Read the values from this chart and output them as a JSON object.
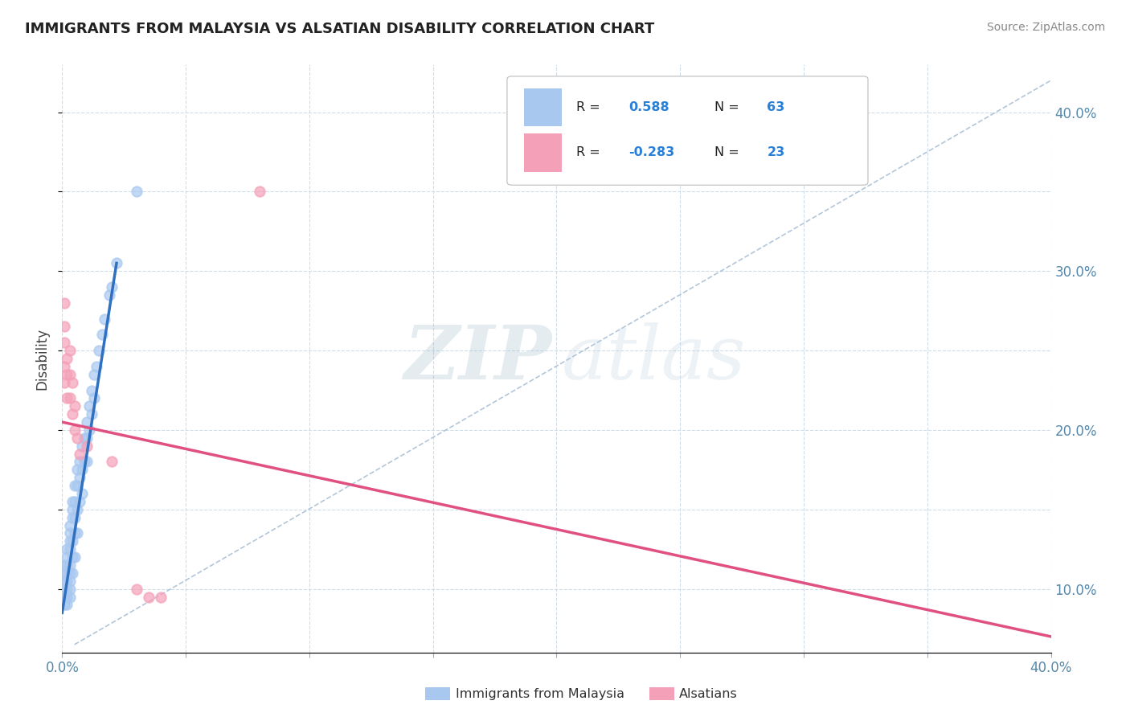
{
  "title": "IMMIGRANTS FROM MALAYSIA VS ALSATIAN DISABILITY CORRELATION CHART",
  "source": "Source: ZipAtlas.com",
  "ylabel": "Disability",
  "xlim": [
    0.0,
    0.4
  ],
  "ylim": [
    0.06,
    0.43
  ],
  "x_ticks": [
    0.0,
    0.05,
    0.1,
    0.15,
    0.2,
    0.25,
    0.3,
    0.35,
    0.4
  ],
  "x_tick_labels": [
    "0.0%",
    "",
    "",
    "",
    "",
    "",
    "",
    "",
    "40.0%"
  ],
  "y_ticks_right": [
    0.1,
    0.2,
    0.3,
    0.4
  ],
  "y_tick_labels_right": [
    "10.0%",
    "20.0%",
    "30.0%",
    "40.0%"
  ],
  "blue_color": "#A8C8F0",
  "pink_color": "#F4A0B8",
  "blue_line_color": "#3070C0",
  "pink_line_color": "#E05080",
  "ref_line_color": "#A0B8D0",
  "title_fontsize": 13,
  "blue_scatter_x": [
    0.001,
    0.001,
    0.001,
    0.001,
    0.001,
    0.001,
    0.002,
    0.002,
    0.002,
    0.002,
    0.002,
    0.002,
    0.002,
    0.002,
    0.003,
    0.003,
    0.003,
    0.003,
    0.003,
    0.003,
    0.003,
    0.003,
    0.003,
    0.004,
    0.004,
    0.004,
    0.004,
    0.004,
    0.004,
    0.005,
    0.005,
    0.005,
    0.005,
    0.005,
    0.006,
    0.006,
    0.006,
    0.006,
    0.007,
    0.007,
    0.007,
    0.008,
    0.008,
    0.008,
    0.009,
    0.009,
    0.01,
    0.01,
    0.01,
    0.011,
    0.011,
    0.012,
    0.012,
    0.013,
    0.013,
    0.014,
    0.015,
    0.016,
    0.017,
    0.019,
    0.02,
    0.022,
    0.03
  ],
  "blue_scatter_y": [
    0.115,
    0.11,
    0.105,
    0.1,
    0.095,
    0.09,
    0.125,
    0.12,
    0.115,
    0.11,
    0.105,
    0.1,
    0.095,
    0.09,
    0.14,
    0.135,
    0.13,
    0.125,
    0.115,
    0.11,
    0.105,
    0.1,
    0.095,
    0.155,
    0.15,
    0.145,
    0.13,
    0.12,
    0.11,
    0.165,
    0.155,
    0.145,
    0.135,
    0.12,
    0.175,
    0.165,
    0.15,
    0.135,
    0.18,
    0.17,
    0.155,
    0.19,
    0.175,
    0.16,
    0.195,
    0.18,
    0.205,
    0.195,
    0.18,
    0.215,
    0.2,
    0.225,
    0.21,
    0.235,
    0.22,
    0.24,
    0.25,
    0.26,
    0.27,
    0.285,
    0.29,
    0.305,
    0.35
  ],
  "pink_scatter_x": [
    0.001,
    0.001,
    0.001,
    0.001,
    0.001,
    0.002,
    0.002,
    0.002,
    0.003,
    0.003,
    0.003,
    0.004,
    0.004,
    0.005,
    0.005,
    0.006,
    0.007,
    0.01,
    0.02,
    0.03,
    0.035,
    0.04,
    0.08
  ],
  "pink_scatter_y": [
    0.28,
    0.265,
    0.255,
    0.24,
    0.23,
    0.245,
    0.235,
    0.22,
    0.25,
    0.235,
    0.22,
    0.23,
    0.21,
    0.215,
    0.2,
    0.195,
    0.185,
    0.19,
    0.18,
    0.1,
    0.095,
    0.095,
    0.35
  ],
  "blue_line_x0": 0.0,
  "blue_line_y0": 0.085,
  "blue_line_x1": 0.022,
  "blue_line_y1": 0.305,
  "pink_line_x0": 0.0,
  "pink_line_y0": 0.205,
  "pink_line_x1": 0.4,
  "pink_line_y1": 0.07,
  "ref_line_x0": 0.005,
  "ref_line_y0": 0.065,
  "ref_line_x1": 0.4,
  "ref_line_y1": 0.42
}
